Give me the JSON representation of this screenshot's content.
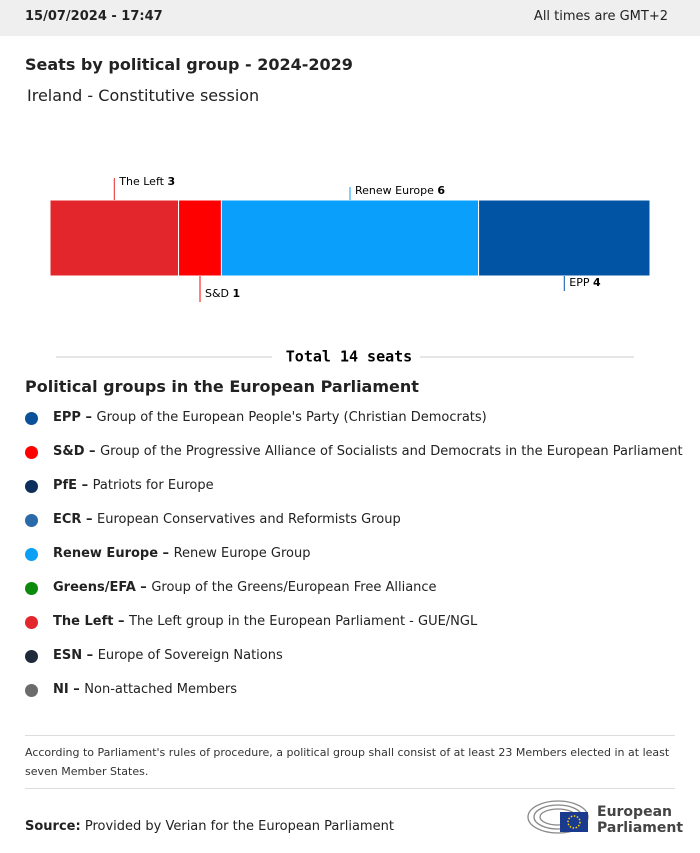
{
  "header": {
    "datetime": "15/07/2024 - 17:47",
    "timezone": "All times are GMT+2"
  },
  "chart_data": {
    "type": "stacked-bar",
    "title": "Seats by political group - 2024-2029",
    "subtitle": "Ireland - Constitutive session",
    "series": [
      {
        "name": "The Left",
        "color": "#e3262b",
        "values": [
          3
        ]
      },
      {
        "name": "S&D",
        "color": "#ff0000",
        "values": [
          1
        ]
      },
      {
        "name": "Renew Europe",
        "color": "#0a9ffa",
        "values": [
          6
        ]
      },
      {
        "name": "EPP",
        "color": "#0054a3",
        "values": [
          4
        ]
      }
    ],
    "total_label": "Total 14 seats"
  },
  "legend": {
    "title": "Political groups in the European Parliament",
    "items": [
      {
        "abbr": "EPP –",
        "name": "Group of the European People's Party (Christian Democrats)",
        "color": "#0a5199"
      },
      {
        "abbr": "S&D –",
        "name": "Group of the Progressive Alliance of Socialists and Democrats in the European Parliament",
        "color": "#ff0000"
      },
      {
        "abbr": "PfE –",
        "name": "Patriots for Europe",
        "color": "#0d2f5e"
      },
      {
        "abbr": "ECR –",
        "name": "European Conservatives and Reformists Group",
        "color": "#2a6aa8"
      },
      {
        "abbr": "Renew Europe –",
        "name": "Renew Europe Group",
        "color": "#0aa0f5"
      },
      {
        "abbr": "Greens/EFA –",
        "name": "Group of the Greens/European Free Alliance",
        "color": "#0c8a0c"
      },
      {
        "abbr": "The Left –",
        "name": "The Left group in the European Parliament - GUE/NGL",
        "color": "#e3262b"
      },
      {
        "abbr": "ESN –",
        "name": "Europe of Sovereign Nations",
        "color": "#1f2a3a"
      },
      {
        "abbr": "NI –",
        "name": "Non-attached Members",
        "color": "#6b6b6b"
      }
    ]
  },
  "footnote": "According to Parliament's rules of procedure, a political group shall consist of at least 23 Members elected in at least seven Member States.",
  "source": {
    "label": "Source:",
    "text": "Provided by Verian for the European Parliament"
  },
  "logo": {
    "line1": "European",
    "line2": "Parliament"
  }
}
